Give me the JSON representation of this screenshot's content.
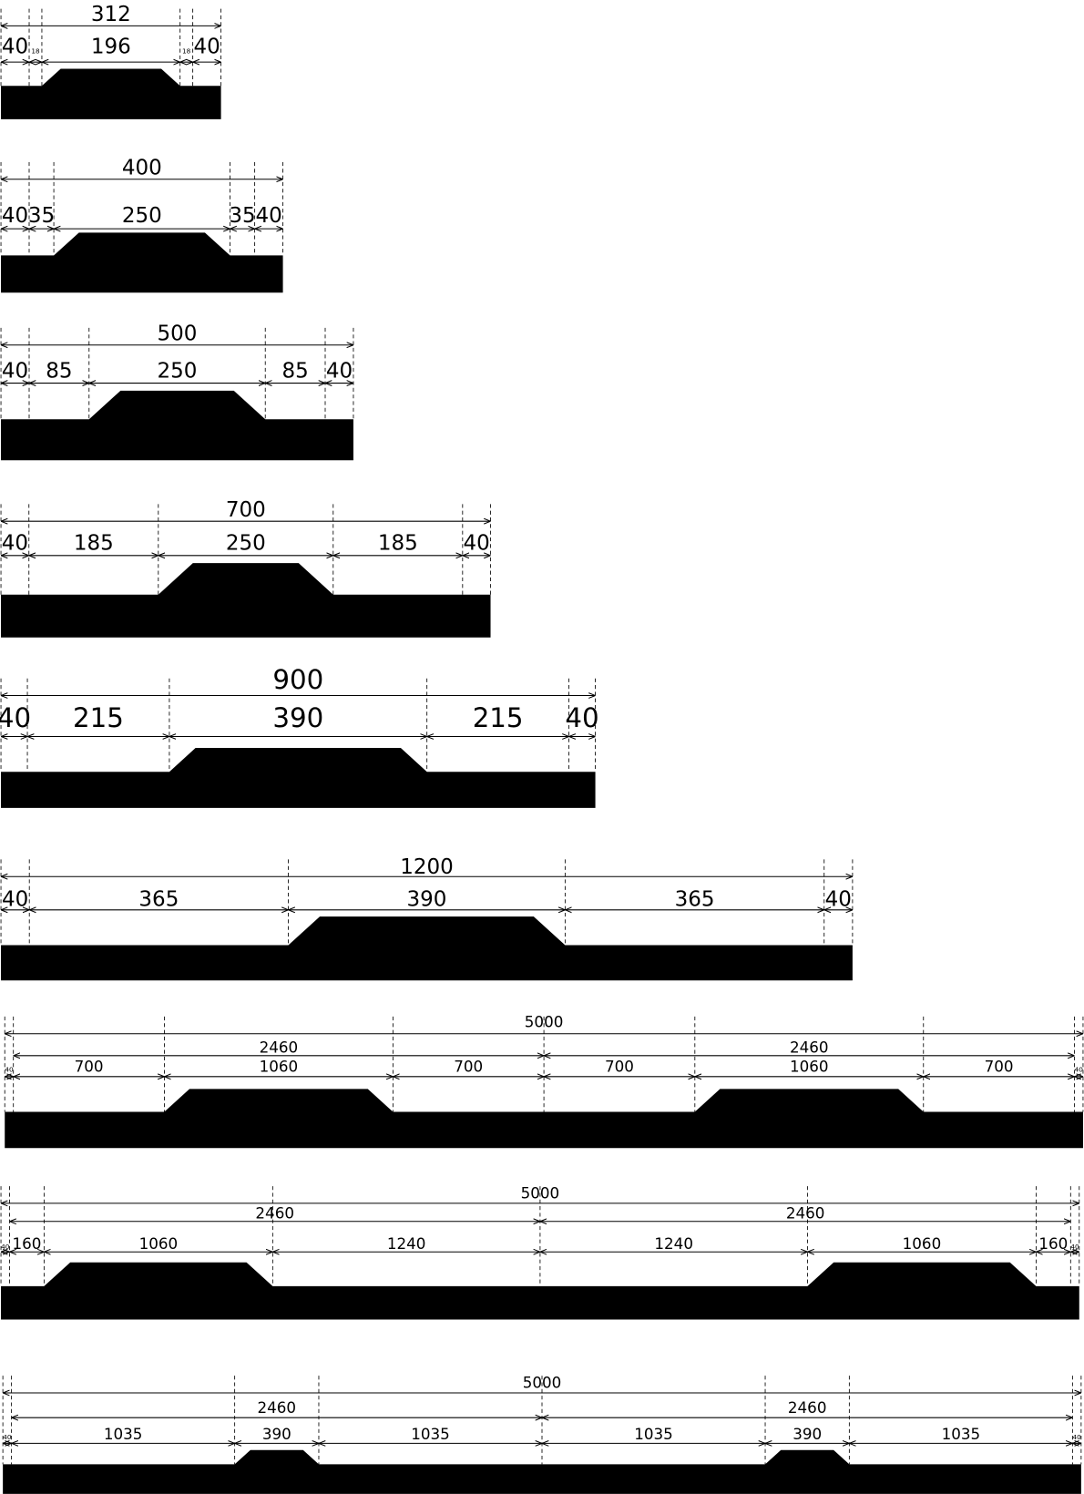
{
  "profiles": [
    {
      "total": 312,
      "segments": [
        40,
        18,
        196,
        18,
        40
      ]
    },
    {
      "total": 400,
      "segments": [
        40,
        35,
        250,
        35,
        40
      ]
    },
    {
      "total": 500,
      "segments": [
        40,
        85,
        250,
        85,
        40
      ]
    },
    {
      "total": 700,
      "segments": [
        40,
        185,
        250,
        185,
        40
      ]
    },
    {
      "total": 900,
      "segments": [
        40,
        215,
        390,
        215,
        40
      ]
    },
    {
      "total": 1200,
      "segments": [
        40,
        365,
        390,
        365,
        40
      ]
    },
    {
      "total": 5000,
      "halves": [
        2460,
        2460
      ],
      "segments": [
        40,
        700,
        1060,
        700,
        700,
        1060,
        700,
        40
      ]
    },
    {
      "total": 5000,
      "halves": [
        2460,
        2460
      ],
      "segments": [
        40,
        160,
        1060,
        1240,
        1240,
        1060,
        160,
        40
      ]
    },
    {
      "total": 5000,
      "halves": [
        2460,
        2460
      ],
      "segments": [
        40,
        1035,
        390,
        1035,
        1035,
        390,
        1035,
        40
      ]
    }
  ]
}
